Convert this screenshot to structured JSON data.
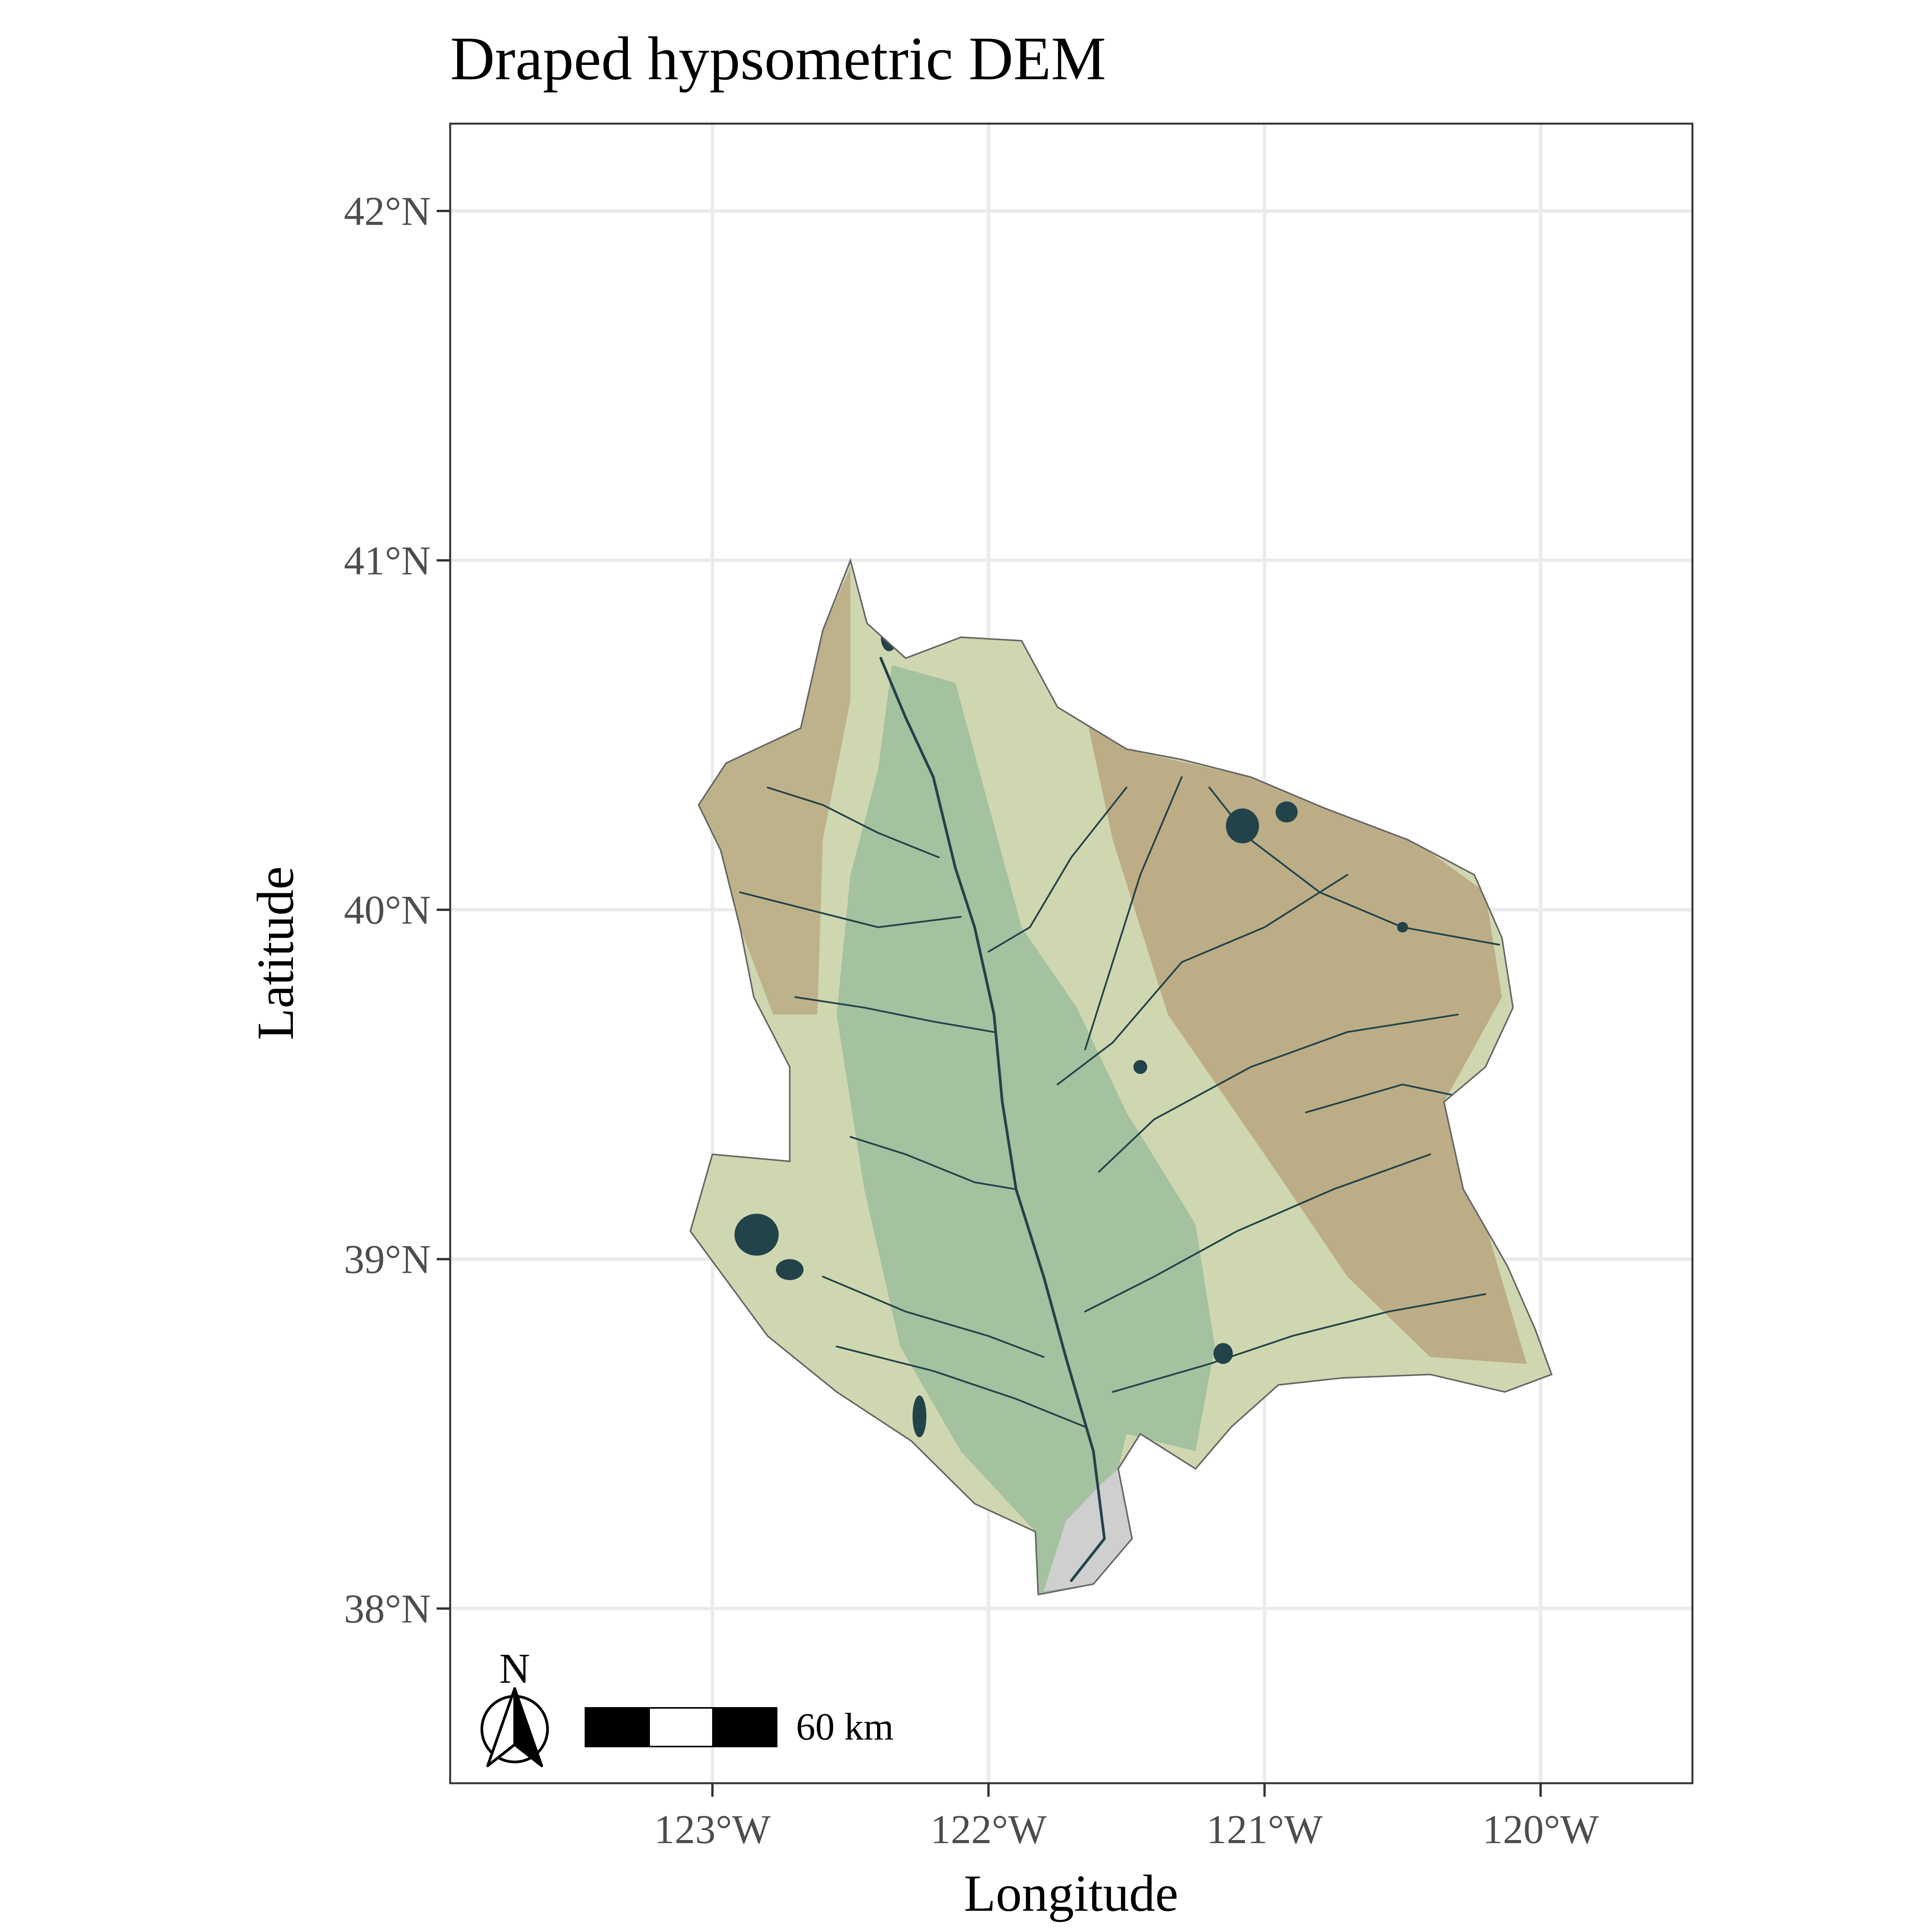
{
  "title": "Draped hypsometric DEM",
  "axes": {
    "x_title": "Longitude",
    "y_title": "Latitude",
    "x_ticks": [
      "123°W",
      "122°W",
      "121°W",
      "120°W"
    ],
    "y_ticks": [
      "42°N",
      "41°N",
      "40°N",
      "39°N",
      "38°N"
    ]
  },
  "north_arrow": {
    "label": "N"
  },
  "scale_bar": {
    "label": "60 km"
  },
  "colors": {
    "lowland": "#9fbf9f",
    "midland": "#cfd7b0",
    "highland": "#b8a67f",
    "peak": "#d8d4cc",
    "water": "#23434a",
    "delta": "#cfcfcf",
    "panel_border": "#333333",
    "grid": "#ebebeb"
  },
  "chart_data": {
    "type": "map",
    "title": "Draped hypsometric DEM",
    "xlabel": "Longitude",
    "ylabel": "Latitude",
    "xlim": [
      -123.95,
      -119.45
    ],
    "ylim": [
      37.5,
      42.25
    ],
    "x_ticks": [
      -123,
      -122,
      -121,
      -120
    ],
    "y_ticks": [
      38,
      39,
      40,
      41,
      42
    ],
    "grid": true,
    "basin_outline": [
      [
        -122.5,
        41.0
      ],
      [
        -122.44,
        40.82
      ],
      [
        -122.3,
        40.72
      ],
      [
        -122.1,
        40.78
      ],
      [
        -121.88,
        40.77
      ],
      [
        -121.75,
        40.58
      ],
      [
        -121.5,
        40.46
      ],
      [
        -121.3,
        40.43
      ],
      [
        -121.05,
        40.38
      ],
      [
        -120.78,
        40.29
      ],
      [
        -120.48,
        40.2
      ],
      [
        -120.24,
        40.1
      ],
      [
        -120.14,
        39.92
      ],
      [
        -120.1,
        39.72
      ],
      [
        -120.2,
        39.55
      ],
      [
        -120.35,
        39.45
      ],
      [
        -120.28,
        39.2
      ],
      [
        -120.12,
        38.98
      ],
      [
        -120.02,
        38.8
      ],
      [
        -119.96,
        38.67
      ],
      [
        -120.13,
        38.62
      ],
      [
        -120.4,
        38.67
      ],
      [
        -120.72,
        38.66
      ],
      [
        -120.95,
        38.64
      ],
      [
        -121.12,
        38.52
      ],
      [
        -121.25,
        38.4
      ],
      [
        -121.45,
        38.5
      ],
      [
        -121.53,
        38.4
      ],
      [
        -121.48,
        38.2
      ],
      [
        -121.62,
        38.07
      ],
      [
        -121.82,
        38.04
      ],
      [
        -121.83,
        38.22
      ],
      [
        -122.05,
        38.3
      ],
      [
        -122.28,
        38.48
      ],
      [
        -122.55,
        38.62
      ],
      [
        -122.8,
        38.78
      ],
      [
        -123.08,
        39.08
      ],
      [
        -123.0,
        39.3
      ],
      [
        -122.72,
        39.28
      ],
      [
        -122.72,
        39.55
      ],
      [
        -122.85,
        39.75
      ],
      [
        -122.9,
        39.95
      ],
      [
        -122.97,
        40.17
      ],
      [
        -123.05,
        40.3
      ],
      [
        -122.95,
        40.42
      ],
      [
        -122.68,
        40.52
      ],
      [
        -122.6,
        40.8
      ],
      [
        -122.5,
        41.0
      ]
    ],
    "lowland_outline": [
      [
        -122.35,
        40.7
      ],
      [
        -122.12,
        40.65
      ],
      [
        -122.0,
        40.3
      ],
      [
        -121.88,
        39.95
      ],
      [
        -121.68,
        39.72
      ],
      [
        -121.5,
        39.42
      ],
      [
        -121.25,
        39.1
      ],
      [
        -121.18,
        38.75
      ],
      [
        -121.25,
        38.45
      ],
      [
        -121.5,
        38.5
      ],
      [
        -121.53,
        38.4
      ],
      [
        -121.48,
        38.2
      ],
      [
        -121.62,
        38.07
      ],
      [
        -121.82,
        38.04
      ],
      [
        -121.83,
        38.22
      ],
      [
        -122.1,
        38.45
      ],
      [
        -122.32,
        38.75
      ],
      [
        -122.45,
        39.2
      ],
      [
        -122.55,
        39.7
      ],
      [
        -122.5,
        40.1
      ],
      [
        -122.4,
        40.4
      ],
      [
        -122.35,
        40.7
      ]
    ],
    "highland_outline": [
      [
        -121.7,
        40.75
      ],
      [
        -121.45,
        40.45
      ],
      [
        -121.05,
        40.38
      ],
      [
        -120.55,
        40.25
      ],
      [
        -120.2,
        40.05
      ],
      [
        -120.14,
        39.75
      ],
      [
        -120.35,
        39.45
      ],
      [
        -120.2,
        39.1
      ],
      [
        -120.05,
        38.7
      ],
      [
        -120.4,
        38.72
      ],
      [
        -120.7,
        38.95
      ],
      [
        -121.0,
        39.3
      ],
      [
        -121.35,
        39.7
      ],
      [
        -121.55,
        40.2
      ],
      [
        -121.7,
        40.75
      ]
    ],
    "west_highland_outline": [
      [
        -122.5,
        40.98
      ],
      [
        -122.6,
        40.8
      ],
      [
        -122.68,
        40.52
      ],
      [
        -122.95,
        40.42
      ],
      [
        -123.05,
        40.3
      ],
      [
        -122.97,
        40.17
      ],
      [
        -122.9,
        39.95
      ],
      [
        -122.78,
        39.7
      ],
      [
        -122.62,
        39.7
      ],
      [
        -122.6,
        40.2
      ],
      [
        -122.5,
        40.6
      ],
      [
        -122.5,
        40.98
      ]
    ],
    "delta_outline": [
      [
        -121.53,
        38.4
      ],
      [
        -121.48,
        38.2
      ],
      [
        -121.62,
        38.07
      ],
      [
        -121.8,
        38.05
      ],
      [
        -121.72,
        38.25
      ],
      [
        -121.6,
        38.35
      ],
      [
        -121.53,
        38.4
      ]
    ],
    "main_river": [
      [
        -122.39,
        40.72
      ],
      [
        -122.3,
        40.55
      ],
      [
        -122.2,
        40.38
      ],
      [
        -122.12,
        40.12
      ],
      [
        -122.05,
        39.95
      ],
      [
        -121.98,
        39.7
      ],
      [
        -121.95,
        39.45
      ],
      [
        -121.9,
        39.2
      ],
      [
        -121.8,
        38.95
      ],
      [
        -121.72,
        38.72
      ],
      [
        -121.62,
        38.45
      ],
      [
        -121.58,
        38.2
      ],
      [
        -121.7,
        38.08
      ]
    ],
    "tributaries": [
      [
        [
          -122.8,
          40.35
        ],
        [
          -122.6,
          40.3
        ],
        [
          -122.4,
          40.22
        ],
        [
          -122.18,
          40.15
        ]
      ],
      [
        [
          -122.9,
          40.05
        ],
        [
          -122.65,
          40.0
        ],
        [
          -122.4,
          39.95
        ],
        [
          -122.1,
          39.98
        ]
      ],
      [
        [
          -122.7,
          39.75
        ],
        [
          -122.45,
          39.72
        ],
        [
          -122.2,
          39.68
        ],
        [
          -121.98,
          39.65
        ]
      ],
      [
        [
          -122.5,
          39.35
        ],
        [
          -122.3,
          39.3
        ],
        [
          -122.05,
          39.22
        ],
        [
          -121.9,
          39.2
        ]
      ],
      [
        [
          -122.6,
          38.95
        ],
        [
          -122.3,
          38.85
        ],
        [
          -122.0,
          38.78
        ],
        [
          -121.8,
          38.72
        ]
      ],
      [
        [
          -122.55,
          38.75
        ],
        [
          -122.2,
          38.68
        ],
        [
          -121.9,
          38.6
        ],
        [
          -121.65,
          38.52
        ]
      ],
      [
        [
          -121.5,
          40.35
        ],
        [
          -121.7,
          40.15
        ],
        [
          -121.85,
          39.95
        ],
        [
          -122.0,
          39.88
        ]
      ],
      [
        [
          -120.7,
          40.1
        ],
        [
          -121.0,
          39.95
        ],
        [
          -121.3,
          39.85
        ],
        [
          -121.55,
          39.62
        ],
        [
          -121.75,
          39.5
        ]
      ],
      [
        [
          -120.3,
          39.7
        ],
        [
          -120.7,
          39.65
        ],
        [
          -121.05,
          39.55
        ],
        [
          -121.4,
          39.4
        ],
        [
          -121.6,
          39.25
        ]
      ],
      [
        [
          -120.4,
          39.3
        ],
        [
          -120.75,
          39.2
        ],
        [
          -121.1,
          39.08
        ],
        [
          -121.4,
          38.95
        ],
        [
          -121.65,
          38.85
        ]
      ],
      [
        [
          -120.2,
          38.9
        ],
        [
          -120.55,
          38.85
        ],
        [
          -120.9,
          38.78
        ],
        [
          -121.2,
          38.7
        ],
        [
          -121.55,
          38.62
        ]
      ],
      [
        [
          -120.15,
          39.9
        ],
        [
          -120.5,
          39.95
        ],
        [
          -120.8,
          40.05
        ],
        [
          -121.05,
          40.2
        ],
        [
          -121.2,
          40.35
        ]
      ],
      [
        [
          -120.2,
          39.45
        ],
        [
          -120.5,
          39.5
        ],
        [
          -120.85,
          39.42
        ]
      ],
      [
        [
          -121.3,
          40.38
        ],
        [
          -121.45,
          40.1
        ],
        [
          -121.55,
          39.85
        ],
        [
          -121.65,
          39.6
        ]
      ]
    ],
    "lakes": [
      {
        "lon": -122.84,
        "lat": 39.07,
        "rx": 0.08,
        "ry": 0.06
      },
      {
        "lon": -122.72,
        "lat": 38.97,
        "rx": 0.05,
        "ry": 0.03
      },
      {
        "lon": -122.25,
        "lat": 38.55,
        "rx": 0.025,
        "ry": 0.06
      },
      {
        "lon": -121.08,
        "lat": 40.24,
        "rx": 0.06,
        "ry": 0.05
      },
      {
        "lon": -120.92,
        "lat": 40.28,
        "rx": 0.04,
        "ry": 0.03
      },
      {
        "lon": -121.15,
        "lat": 38.73,
        "rx": 0.035,
        "ry": 0.03
      },
      {
        "lon": -122.36,
        "lat": 40.78,
        "rx": 0.03,
        "ry": 0.04
      },
      {
        "lon": -121.45,
        "lat": 39.55,
        "rx": 0.025,
        "ry": 0.02
      },
      {
        "lon": -120.5,
        "lat": 39.95,
        "rx": 0.02,
        "ry": 0.015
      }
    ]
  }
}
